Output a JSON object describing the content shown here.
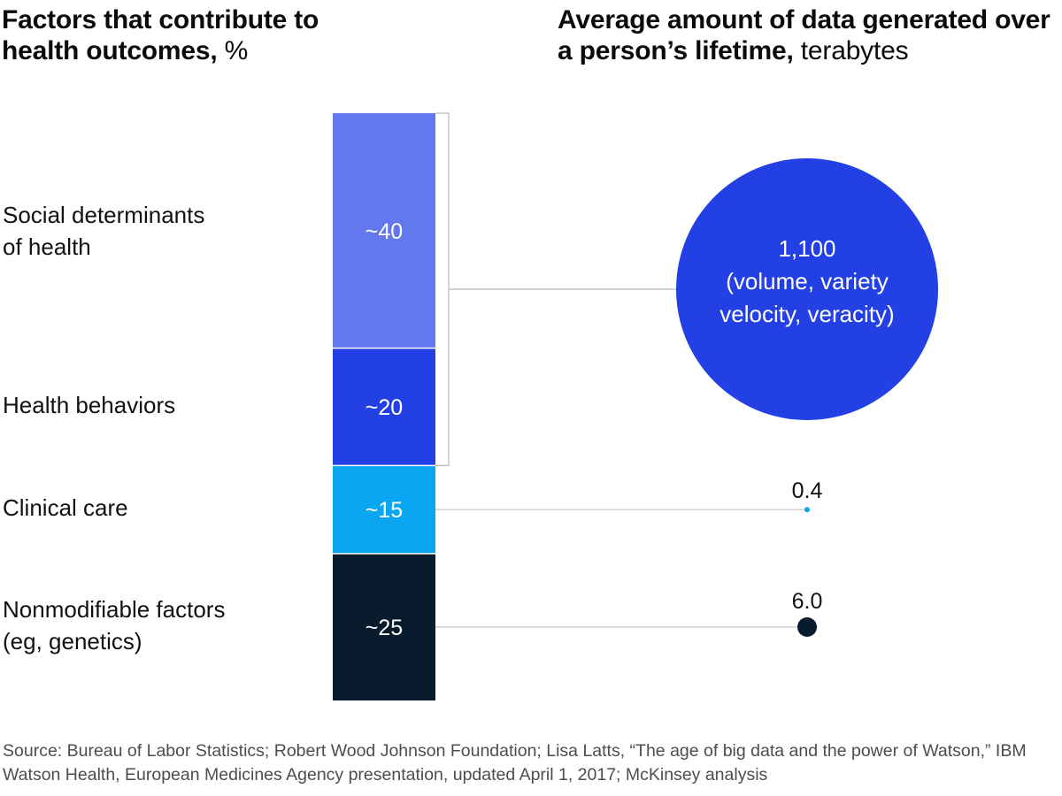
{
  "left_title": {
    "main": "Factors that contribute to health outcomes,",
    "unit": "%"
  },
  "right_title": {
    "main": "Average amount of data generated over a person’s lifetime,",
    "unit": "terabytes"
  },
  "chart_data": [
    {
      "type": "bar",
      "subtype": "stacked-100",
      "title": "Factors that contribute to health outcomes, %",
      "categories": [
        "Social determinants of health",
        "Health behaviors",
        "Clinical care",
        "Nonmodifiable factors (eg, genetics)"
      ],
      "label_lines": [
        [
          "Social determinants",
          "of health"
        ],
        [
          "Health behaviors"
        ],
        [
          "Clinical care"
        ],
        [
          "Nonmodifiable factors",
          "(eg, genetics)"
        ]
      ],
      "values": [
        40,
        20,
        15,
        25
      ],
      "value_labels": [
        "~40",
        "~20",
        "~15",
        "~25"
      ],
      "colors": [
        "#6478ee",
        "#2240e4",
        "#0aa6f2",
        "#081c2e"
      ]
    },
    {
      "type": "scatter",
      "subtype": "proportional-circles",
      "title": "Average amount of data generated over a person’s lifetime, terabytes",
      "points": [
        {
          "linked_to": [
            "Social determinants of health",
            "Health behaviors"
          ],
          "value": 1100,
          "label": "1,100",
          "note_lines": [
            "(volume, variety",
            "velocity, veracity)"
          ],
          "color": "#2240e4"
        },
        {
          "linked_to": [
            "Clinical care"
          ],
          "value": 0.4,
          "label": "0.4",
          "color": "#0aa6f2"
        },
        {
          "linked_to": [
            "Nonmodifiable factors (eg, genetics)"
          ],
          "value": 6.0,
          "label": "6.0",
          "color": "#081c2e"
        }
      ]
    }
  ],
  "source": "Source: Bureau of Labor Statistics; Robert Wood Johnson Foundation; Lisa Latts, “The age of big data and the power of Watson,” IBM Watson Health, European Medicines Agency presentation, updated April 1, 2017; McKinsey analysis"
}
